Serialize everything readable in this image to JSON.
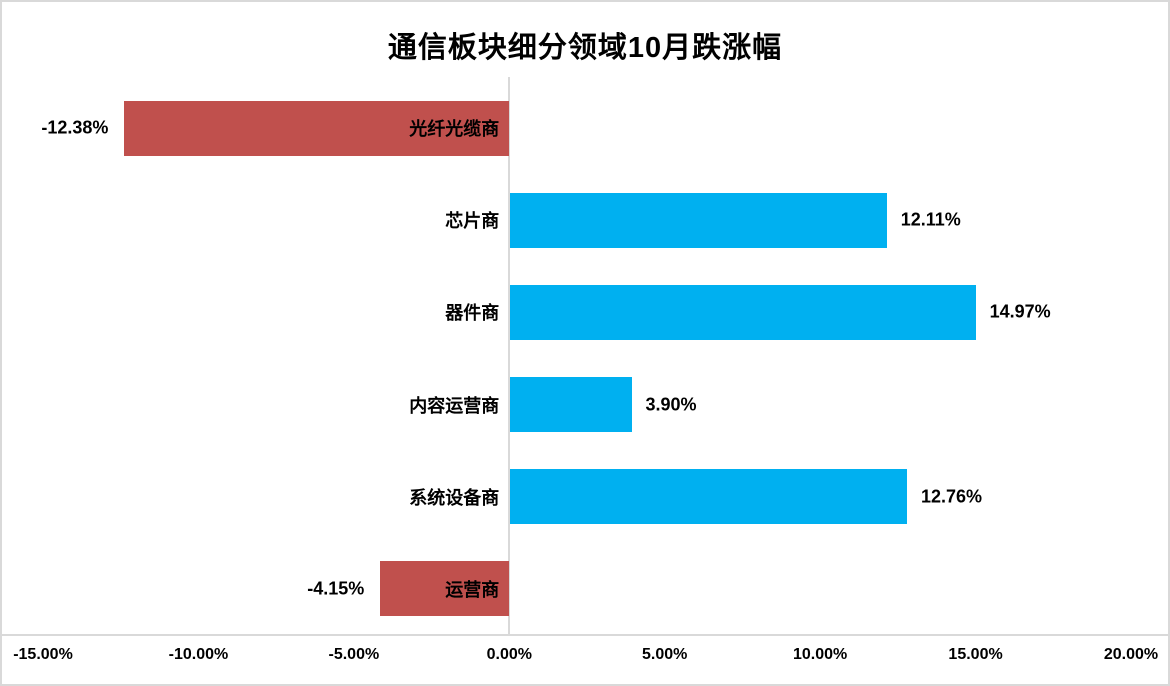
{
  "title": "通信板块细分领域10月跌涨幅",
  "colors": {
    "positive_bar": "#00B0F0",
    "negative_bar": "#C0504D",
    "axis_line": "#D9D9D9",
    "frame": "#D9D9D9",
    "text": "#000000"
  },
  "chart_data": {
    "type": "bar",
    "orientation": "horizontal",
    "title": "通信板块细分领域10月跌涨幅",
    "categories": [
      "光纤光缆商",
      "芯片商",
      "器件商",
      "内容运营商",
      "系统设备商",
      "运营商"
    ],
    "values": [
      -12.38,
      12.11,
      14.97,
      3.9,
      12.76,
      -4.15
    ],
    "value_labels": [
      "-12.38%",
      "12.11%",
      "14.97%",
      "3.90%",
      "12.76%",
      "-4.15%"
    ],
    "xlim": [
      -15,
      20
    ],
    "x_tick_values": [
      -15,
      -10,
      -5,
      0,
      5,
      10,
      15,
      20
    ],
    "x_tick_labels": [
      "-15.00%",
      "-10.00%",
      "-5.00%",
      "0.00%",
      "5.00%",
      "10.00%",
      "15.00%",
      "20.00%"
    ],
    "xlabel": "",
    "ylabel": "",
    "grid": false,
    "legend": false,
    "zero_line": true,
    "category_label_position": "right-aligned ending just left of zero line (inside bar for negative values)",
    "value_label_position": "outside bar end"
  }
}
